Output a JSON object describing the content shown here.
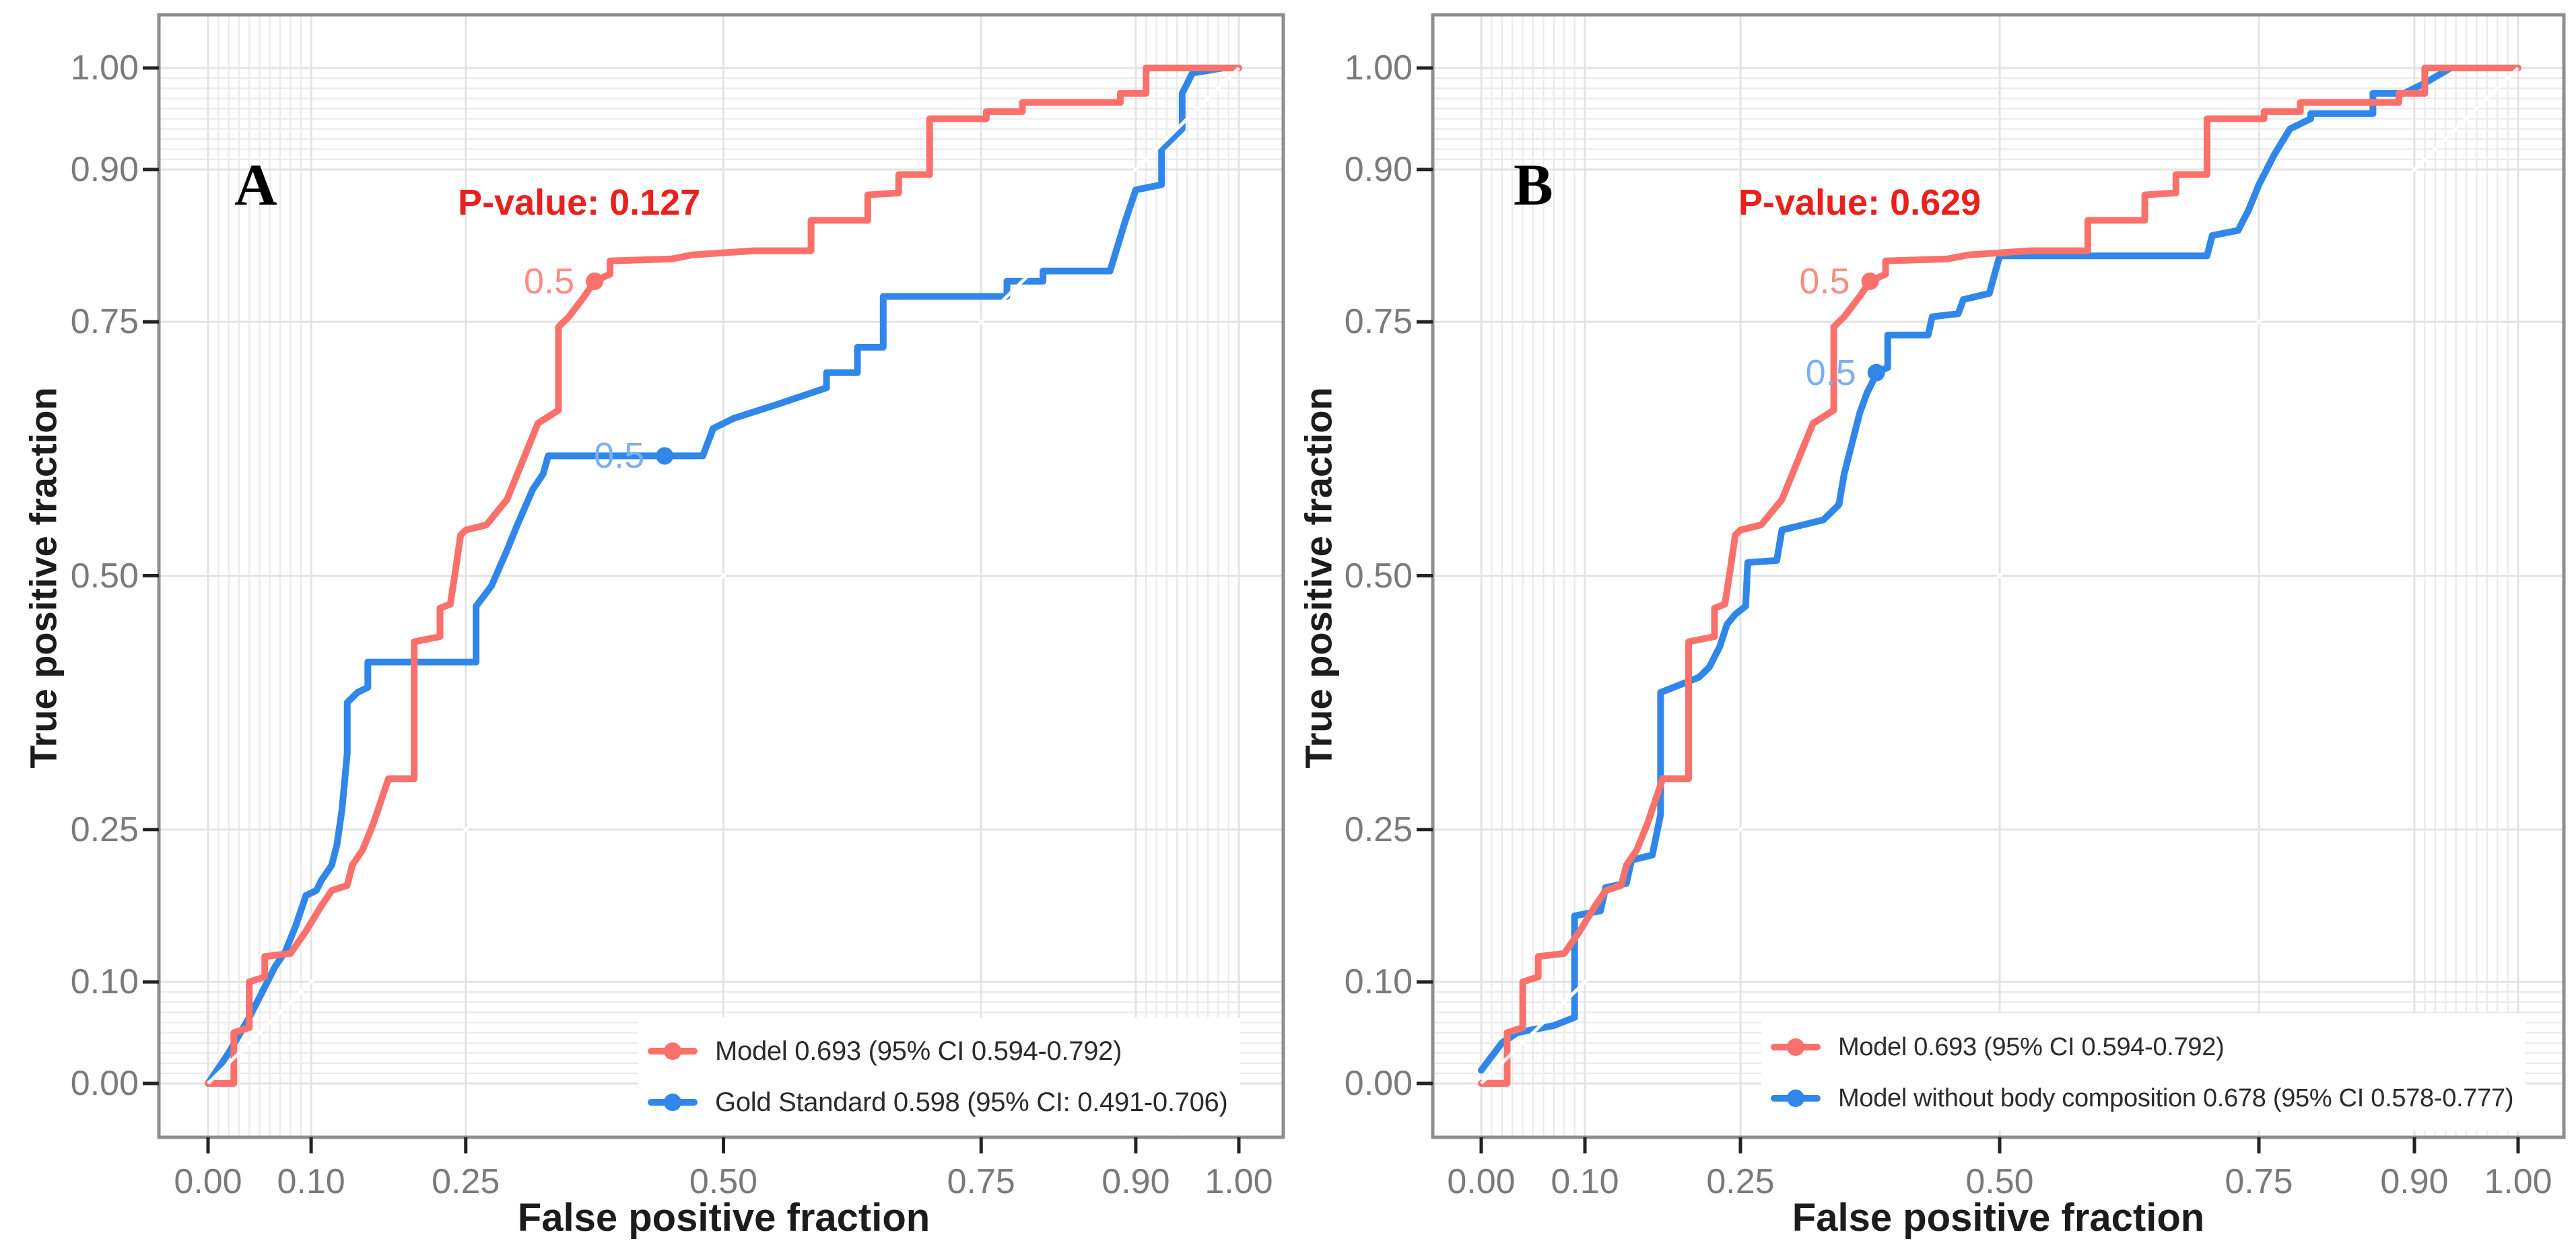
{
  "colors": {
    "red": "#fa716b",
    "blue": "#3087e9",
    "red_cutoff_label": "#fa8d83",
    "blue_cutoff_label": "#7caef0",
    "annotation_red": "#e9211d",
    "grid_major": "#e3e3e3",
    "grid_minor": "#ebebeb",
    "axis_border": "#8e8e8e",
    "tick_mark": "#222222",
    "tick_label": "#7a7a7a",
    "axis_title": "#1c1c1c",
    "legend_text": "#2b2b2b",
    "panel_letter": "#000000",
    "diagonal_reference": "#ffffff",
    "background": "#ffffff"
  },
  "chart_data": [
    {
      "type": "line",
      "panel_label": "A",
      "xlabel": "False positive fraction",
      "ylabel": "True positive fraction",
      "xlim": [
        0,
        1
      ],
      "ylim": [
        0,
        1
      ],
      "x_ticks": [
        0.0,
        0.1,
        0.25,
        0.5,
        0.75,
        0.9,
        1.0
      ],
      "x_tick_labels": [
        "0.00",
        "0.10",
        "0.25",
        "0.50",
        "0.75",
        "0.90",
        "1.00"
      ],
      "y_ticks": [
        0.0,
        0.1,
        0.25,
        0.5,
        0.75,
        0.9,
        1.0
      ],
      "y_tick_labels": [
        "0.00",
        "0.10",
        "0.25",
        "0.50",
        "0.75",
        "0.90",
        "1.00"
      ],
      "grid": "on",
      "minor_grid_step": 0.01,
      "minor_grid_bands": [
        [
          0.01,
          0.09
        ],
        [
          0.91,
          0.99
        ]
      ],
      "diagonal_reference_line": true,
      "annotation": {
        "text": "P-value: 0.127",
        "x": 0.36,
        "y": 0.87
      },
      "legend_position": "bottom-right",
      "series": [
        {
          "name": "Model 0.693 (95% CI 0.594-0.792)",
          "auc": 0.693,
          "ci_95": "0.594-0.792",
          "color_key": "red",
          "cutoff_label": "0.5",
          "cutoff_point": [
            0.375,
            0.79
          ],
          "points": [
            [
              0,
              0
            ],
            [
              0.025,
              0
            ],
            [
              0.025,
              0.05
            ],
            [
              0.04,
              0.055
            ],
            [
              0.04,
              0.1
            ],
            [
              0.055,
              0.105
            ],
            [
              0.055,
              0.125
            ],
            [
              0.08,
              0.128
            ],
            [
              0.095,
              0.15
            ],
            [
              0.11,
              0.175
            ],
            [
              0.12,
              0.19
            ],
            [
              0.135,
              0.195
            ],
            [
              0.14,
              0.215
            ],
            [
              0.15,
              0.23
            ],
            [
              0.16,
              0.255
            ],
            [
              0.17,
              0.285
            ],
            [
              0.175,
              0.3
            ],
            [
              0.2,
              0.3
            ],
            [
              0.2,
              0.435
            ],
            [
              0.225,
              0.44
            ],
            [
              0.225,
              0.468
            ],
            [
              0.235,
              0.472
            ],
            [
              0.24,
              0.505
            ],
            [
              0.245,
              0.54
            ],
            [
              0.25,
              0.545
            ],
            [
              0.27,
              0.55
            ],
            [
              0.29,
              0.575
            ],
            [
              0.3,
              0.6
            ],
            [
              0.31,
              0.625
            ],
            [
              0.32,
              0.65
            ],
            [
              0.34,
              0.663
            ],
            [
              0.34,
              0.745
            ],
            [
              0.35,
              0.755
            ],
            [
              0.365,
              0.775
            ],
            [
              0.375,
              0.79
            ],
            [
              0.39,
              0.797
            ],
            [
              0.39,
              0.81
            ],
            [
              0.45,
              0.812
            ],
            [
              0.47,
              0.816
            ],
            [
              0.53,
              0.82
            ],
            [
              0.585,
              0.82
            ],
            [
              0.585,
              0.85
            ],
            [
              0.64,
              0.85
            ],
            [
              0.64,
              0.875
            ],
            [
              0.67,
              0.877
            ],
            [
              0.67,
              0.895
            ],
            [
              0.7,
              0.895
            ],
            [
              0.7,
              0.95
            ],
            [
              0.755,
              0.95
            ],
            [
              0.755,
              0.957
            ],
            [
              0.79,
              0.957
            ],
            [
              0.79,
              0.966
            ],
            [
              0.885,
              0.966
            ],
            [
              0.885,
              0.975
            ],
            [
              0.91,
              0.975
            ],
            [
              0.91,
              1.0
            ],
            [
              1.0,
              1.0
            ]
          ]
        },
        {
          "name": "Gold Standard 0.598 (95% CI: 0.491-0.706)",
          "auc": 0.598,
          "ci_95": "0.491-0.706",
          "color_key": "blue",
          "cutoff_label": "0.5",
          "cutoff_point": [
            0.443,
            0.618
          ],
          "points": [
            [
              0,
              0
            ],
            [
              0.02,
              0.03
            ],
            [
              0.04,
              0.065
            ],
            [
              0.05,
              0.085
            ],
            [
              0.065,
              0.115
            ],
            [
              0.075,
              0.13
            ],
            [
              0.085,
              0.155
            ],
            [
              0.095,
              0.185
            ],
            [
              0.105,
              0.19
            ],
            [
              0.11,
              0.2
            ],
            [
              0.12,
              0.215
            ],
            [
              0.125,
              0.235
            ],
            [
              0.13,
              0.27
            ],
            [
              0.135,
              0.325
            ],
            [
              0.135,
              0.375
            ],
            [
              0.145,
              0.385
            ],
            [
              0.155,
              0.39
            ],
            [
              0.155,
              0.415
            ],
            [
              0.26,
              0.415
            ],
            [
              0.26,
              0.47
            ],
            [
              0.275,
              0.49
            ],
            [
              0.29,
              0.525
            ],
            [
              0.3,
              0.55
            ],
            [
              0.315,
              0.585
            ],
            [
              0.325,
              0.6
            ],
            [
              0.33,
              0.618
            ],
            [
              0.48,
              0.618
            ],
            [
              0.49,
              0.645
            ],
            [
              0.51,
              0.655
            ],
            [
              0.55,
              0.668
            ],
            [
              0.6,
              0.685
            ],
            [
              0.6,
              0.7
            ],
            [
              0.63,
              0.7
            ],
            [
              0.63,
              0.725
            ],
            [
              0.655,
              0.725
            ],
            [
              0.655,
              0.775
            ],
            [
              0.775,
              0.775
            ],
            [
              0.775,
              0.79
            ],
            [
              0.81,
              0.79
            ],
            [
              0.81,
              0.8
            ],
            [
              0.875,
              0.8
            ],
            [
              0.89,
              0.85
            ],
            [
              0.9,
              0.88
            ],
            [
              0.925,
              0.885
            ],
            [
              0.925,
              0.92
            ],
            [
              0.94,
              0.935
            ],
            [
              0.945,
              0.94
            ],
            [
              0.945,
              0.975
            ],
            [
              0.955,
              0.995
            ],
            [
              0.985,
              1.0
            ],
            [
              1.0,
              1.0
            ]
          ]
        }
      ]
    },
    {
      "type": "line",
      "panel_label": "B",
      "xlabel": "False positive fraction",
      "ylabel": "True positive fraction",
      "xlim": [
        0,
        1
      ],
      "ylim": [
        0,
        1
      ],
      "x_ticks": [
        0.0,
        0.1,
        0.25,
        0.5,
        0.75,
        0.9,
        1.0
      ],
      "x_tick_labels": [
        "0.00",
        "0.10",
        "0.25",
        "0.50",
        "0.75",
        "0.90",
        "1.00"
      ],
      "y_ticks": [
        0.0,
        0.1,
        0.25,
        0.5,
        0.75,
        0.9,
        1.0
      ],
      "y_tick_labels": [
        "0.00",
        "0.10",
        "0.25",
        "0.50",
        "0.75",
        "0.90",
        "1.00"
      ],
      "grid": "on",
      "minor_grid_step": 0.01,
      "minor_grid_bands": [
        [
          0.01,
          0.09
        ],
        [
          0.91,
          0.99
        ]
      ],
      "diagonal_reference_line": true,
      "annotation": {
        "text": "P-value: 0.629",
        "x": 0.365,
        "y": 0.87
      },
      "legend_position": "bottom-right",
      "series": [
        {
          "name": "Model 0.693 (95% CI 0.594-0.792)",
          "auc": 0.693,
          "ci_95": "0.594-0.792",
          "color_key": "red",
          "cutoff_label": "0.5",
          "cutoff_point": [
            0.375,
            0.79
          ],
          "points": [
            [
              0,
              0
            ],
            [
              0.025,
              0
            ],
            [
              0.025,
              0.05
            ],
            [
              0.04,
              0.055
            ],
            [
              0.04,
              0.1
            ],
            [
              0.055,
              0.105
            ],
            [
              0.055,
              0.125
            ],
            [
              0.08,
              0.128
            ],
            [
              0.095,
              0.15
            ],
            [
              0.11,
              0.175
            ],
            [
              0.12,
              0.19
            ],
            [
              0.135,
              0.195
            ],
            [
              0.14,
              0.215
            ],
            [
              0.15,
              0.23
            ],
            [
              0.16,
              0.255
            ],
            [
              0.17,
              0.285
            ],
            [
              0.175,
              0.3
            ],
            [
              0.2,
              0.3
            ],
            [
              0.2,
              0.435
            ],
            [
              0.225,
              0.44
            ],
            [
              0.225,
              0.468
            ],
            [
              0.235,
              0.472
            ],
            [
              0.24,
              0.505
            ],
            [
              0.245,
              0.54
            ],
            [
              0.25,
              0.545
            ],
            [
              0.27,
              0.55
            ],
            [
              0.29,
              0.575
            ],
            [
              0.3,
              0.6
            ],
            [
              0.31,
              0.625
            ],
            [
              0.32,
              0.65
            ],
            [
              0.34,
              0.663
            ],
            [
              0.34,
              0.745
            ],
            [
              0.35,
              0.755
            ],
            [
              0.365,
              0.775
            ],
            [
              0.375,
              0.79
            ],
            [
              0.39,
              0.797
            ],
            [
              0.39,
              0.81
            ],
            [
              0.45,
              0.812
            ],
            [
              0.47,
              0.816
            ],
            [
              0.53,
              0.82
            ],
            [
              0.585,
              0.82
            ],
            [
              0.585,
              0.85
            ],
            [
              0.64,
              0.85
            ],
            [
              0.64,
              0.875
            ],
            [
              0.67,
              0.877
            ],
            [
              0.67,
              0.895
            ],
            [
              0.7,
              0.895
            ],
            [
              0.7,
              0.95
            ],
            [
              0.755,
              0.95
            ],
            [
              0.755,
              0.957
            ],
            [
              0.79,
              0.957
            ],
            [
              0.79,
              0.966
            ],
            [
              0.885,
              0.966
            ],
            [
              0.885,
              0.975
            ],
            [
              0.91,
              0.975
            ],
            [
              0.91,
              1.0
            ],
            [
              1.0,
              1.0
            ]
          ]
        },
        {
          "name": "Model without body composition 0.678 (95% CI 0.578-0.777)",
          "auc": 0.678,
          "ci_95": "0.578-0.777",
          "color_key": "blue",
          "cutoff_label": "0.5",
          "cutoff_point": [
            0.381,
            0.7
          ],
          "points": [
            [
              0,
              0.013
            ],
            [
              0.02,
              0.04
            ],
            [
              0.035,
              0.05
            ],
            [
              0.07,
              0.057
            ],
            [
              0.09,
              0.065
            ],
            [
              0.09,
              0.165
            ],
            [
              0.115,
              0.17
            ],
            [
              0.12,
              0.193
            ],
            [
              0.14,
              0.197
            ],
            [
              0.145,
              0.22
            ],
            [
              0.165,
              0.225
            ],
            [
              0.17,
              0.25
            ],
            [
              0.173,
              0.265
            ],
            [
              0.173,
              0.385
            ],
            [
              0.21,
              0.4
            ],
            [
              0.22,
              0.41
            ],
            [
              0.23,
              0.43
            ],
            [
              0.237,
              0.452
            ],
            [
              0.245,
              0.462
            ],
            [
              0.255,
              0.47
            ],
            [
              0.257,
              0.513
            ],
            [
              0.285,
              0.515
            ],
            [
              0.29,
              0.545
            ],
            [
              0.33,
              0.555
            ],
            [
              0.345,
              0.57
            ],
            [
              0.35,
              0.6
            ],
            [
              0.355,
              0.62
            ],
            [
              0.36,
              0.64
            ],
            [
              0.365,
              0.66
            ],
            [
              0.372,
              0.68
            ],
            [
              0.377,
              0.69
            ],
            [
              0.381,
              0.7
            ],
            [
              0.392,
              0.705
            ],
            [
              0.392,
              0.737
            ],
            [
              0.431,
              0.737
            ],
            [
              0.435,
              0.755
            ],
            [
              0.46,
              0.758
            ],
            [
              0.465,
              0.772
            ],
            [
              0.49,
              0.778
            ],
            [
              0.5,
              0.815
            ],
            [
              0.7,
              0.815
            ],
            [
              0.705,
              0.835
            ],
            [
              0.73,
              0.84
            ],
            [
              0.74,
              0.86
            ],
            [
              0.75,
              0.885
            ],
            [
              0.765,
              0.915
            ],
            [
              0.78,
              0.94
            ],
            [
              0.8,
              0.95
            ],
            [
              0.8,
              0.955
            ],
            [
              0.86,
              0.955
            ],
            [
              0.86,
              0.975
            ],
            [
              0.89,
              0.975
            ],
            [
              0.91,
              0.985
            ],
            [
              0.935,
              1.0
            ],
            [
              1.0,
              1.0
            ]
          ]
        }
      ]
    }
  ]
}
